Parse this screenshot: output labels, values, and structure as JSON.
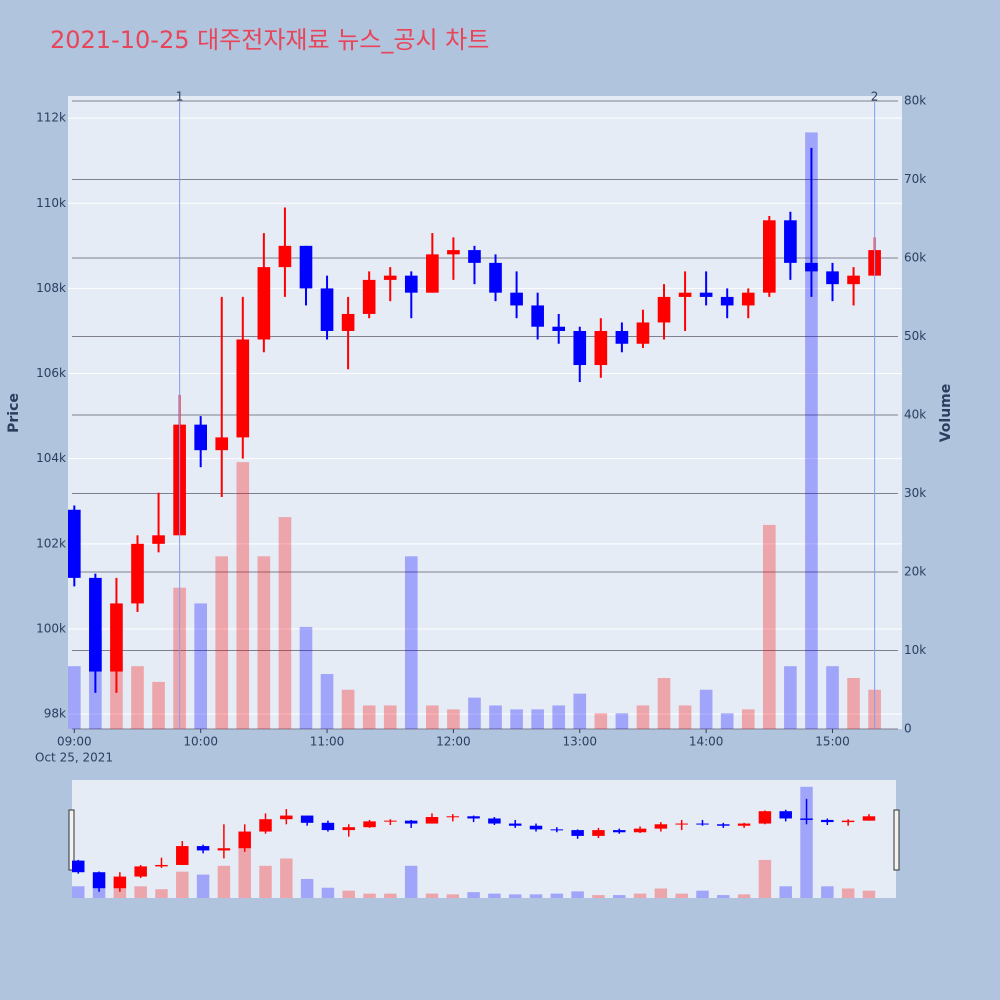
{
  "chart_data": {
    "type": "candlestick",
    "title": "2021-10-25 대주전자재료 뉴스_공시 차트",
    "ylabel": "Price",
    "y2label": "Volume",
    "x_date_label": "Oct 25, 2021",
    "x": [
      "2021-10-25 09:00",
      "2021-10-25 09:10",
      "2021-10-25 09:20",
      "2021-10-25 09:30",
      "2021-10-25 09:40",
      "2021-10-25 09:50",
      "2021-10-25 10:00",
      "2021-10-25 10:10",
      "2021-10-25 10:20",
      "2021-10-25 10:30",
      "2021-10-25 10:40",
      "2021-10-25 10:50",
      "2021-10-25 11:00",
      "2021-10-25 11:10",
      "2021-10-25 11:20",
      "2021-10-25 11:30",
      "2021-10-25 11:40",
      "2021-10-25 11:50",
      "2021-10-25 12:00",
      "2021-10-25 12:10",
      "2021-10-25 12:20",
      "2021-10-25 12:30",
      "2021-10-25 12:40",
      "2021-10-25 12:50",
      "2021-10-25 13:00",
      "2021-10-25 13:10",
      "2021-10-25 13:20",
      "2021-10-25 13:30",
      "2021-10-25 13:40",
      "2021-10-25 13:50",
      "2021-10-25 14:00",
      "2021-10-25 14:10",
      "2021-10-25 14:20",
      "2021-10-25 14:30",
      "2021-10-25 14:40",
      "2021-10-25 14:50",
      "2021-10-25 15:00",
      "2021-10-25 15:10",
      "2021-10-25 15:20"
    ],
    "open": [
      102800,
      101200,
      99000,
      100600,
      102000,
      102200,
      104800,
      104200,
      104500,
      106800,
      108500,
      109000,
      108000,
      107000,
      107400,
      108200,
      108300,
      107900,
      108800,
      108900,
      108600,
      107900,
      107600,
      107100,
      107000,
      106200,
      107000,
      106700,
      107200,
      107800,
      107900,
      107800,
      107600,
      107900,
      109600,
      108600,
      108400,
      108100,
      108300
    ],
    "high": [
      102900,
      101300,
      101200,
      102200,
      103200,
      105500,
      105000,
      107800,
      107800,
      109300,
      109900,
      109000,
      108300,
      107800,
      108400,
      108500,
      108400,
      109300,
      109200,
      109000,
      108800,
      108400,
      107900,
      107400,
      107100,
      107300,
      107200,
      107500,
      108100,
      108400,
      108400,
      108000,
      108000,
      109700,
      109800,
      111300,
      108600,
      108500,
      109200
    ],
    "low": [
      101000,
      98500,
      98500,
      100400,
      101800,
      102200,
      103800,
      103100,
      104000,
      106500,
      107800,
      107600,
      106800,
      106100,
      107300,
      107700,
      107300,
      107900,
      108200,
      108100,
      107700,
      107300,
      106800,
      106700,
      105800,
      105900,
      106500,
      106600,
      106800,
      107000,
      107600,
      107300,
      107300,
      107800,
      108200,
      107800,
      107700,
      107600,
      108300
    ],
    "close": [
      101200,
      99000,
      100600,
      102000,
      102200,
      104800,
      104200,
      104500,
      106800,
      108500,
      109000,
      108000,
      107000,
      107400,
      108200,
      108300,
      107900,
      108800,
      108900,
      108600,
      107900,
      107600,
      107100,
      107000,
      106200,
      107000,
      106700,
      107200,
      107800,
      107900,
      107800,
      107600,
      107900,
      109600,
      108600,
      108400,
      108100,
      108300,
      108900
    ],
    "volume": [
      8000,
      12000,
      9000,
      8000,
      6000,
      18000,
      16000,
      22000,
      34000,
      22000,
      27000,
      13000,
      7000,
      5000,
      3000,
      3000,
      22000,
      3000,
      2500,
      4000,
      3000,
      2500,
      2500,
      3000,
      4500,
      2000,
      2000,
      3000,
      6500,
      3000,
      5000,
      2000,
      2500,
      26000,
      8000,
      76000,
      8000,
      6500,
      5000
    ],
    "increasing_color": "#ff0000",
    "decreasing_color": "#0000ff",
    "xlim": [
      "2021-10-25 08:57",
      "2021-10-25 15:33"
    ],
    "xticks": [
      {
        "value": "2021-10-25 09:00",
        "label": "09:00"
      },
      {
        "value": "2021-10-25 10:00",
        "label": "10:00"
      },
      {
        "value": "2021-10-25 11:00",
        "label": "11:00"
      },
      {
        "value": "2021-10-25 12:00",
        "label": "12:00"
      },
      {
        "value": "2021-10-25 13:00",
        "label": "13:00"
      },
      {
        "value": "2021-10-25 14:00",
        "label": "14:00"
      },
      {
        "value": "2021-10-25 15:00",
        "label": "15:00"
      }
    ],
    "ylim": [
      97650,
      112520
    ],
    "yticks": [
      {
        "value": 98000,
        "label": "98k"
      },
      {
        "value": 100000,
        "label": "100k"
      },
      {
        "value": 102000,
        "label": "102k"
      },
      {
        "value": 104000,
        "label": "104k"
      },
      {
        "value": 106000,
        "label": "106k"
      },
      {
        "value": 108000,
        "label": "108k"
      },
      {
        "value": 110000,
        "label": "110k"
      },
      {
        "value": 112000,
        "label": "112k"
      }
    ],
    "y2lim": [
      0,
      80640
    ],
    "y2ticks": [
      0,
      {
        "value": 10000,
        "label": "10k"
      },
      {
        "value": 20000,
        "label": "20k"
      },
      {
        "value": 30000,
        "label": "30k"
      },
      {
        "value": 40000,
        "label": "40k"
      },
      {
        "value": 50000,
        "label": "50k"
      },
      {
        "value": 60000,
        "label": "60k"
      },
      {
        "value": 70000,
        "label": "70k"
      },
      {
        "value": 80000,
        "label": "80k"
      }
    ],
    "events": [
      {
        "x": "2021-10-25 09:50",
        "label": "1"
      },
      {
        "x": "2021-10-25 15:20",
        "label": "2"
      }
    ],
    "grid": true,
    "rangeslider": true
  }
}
